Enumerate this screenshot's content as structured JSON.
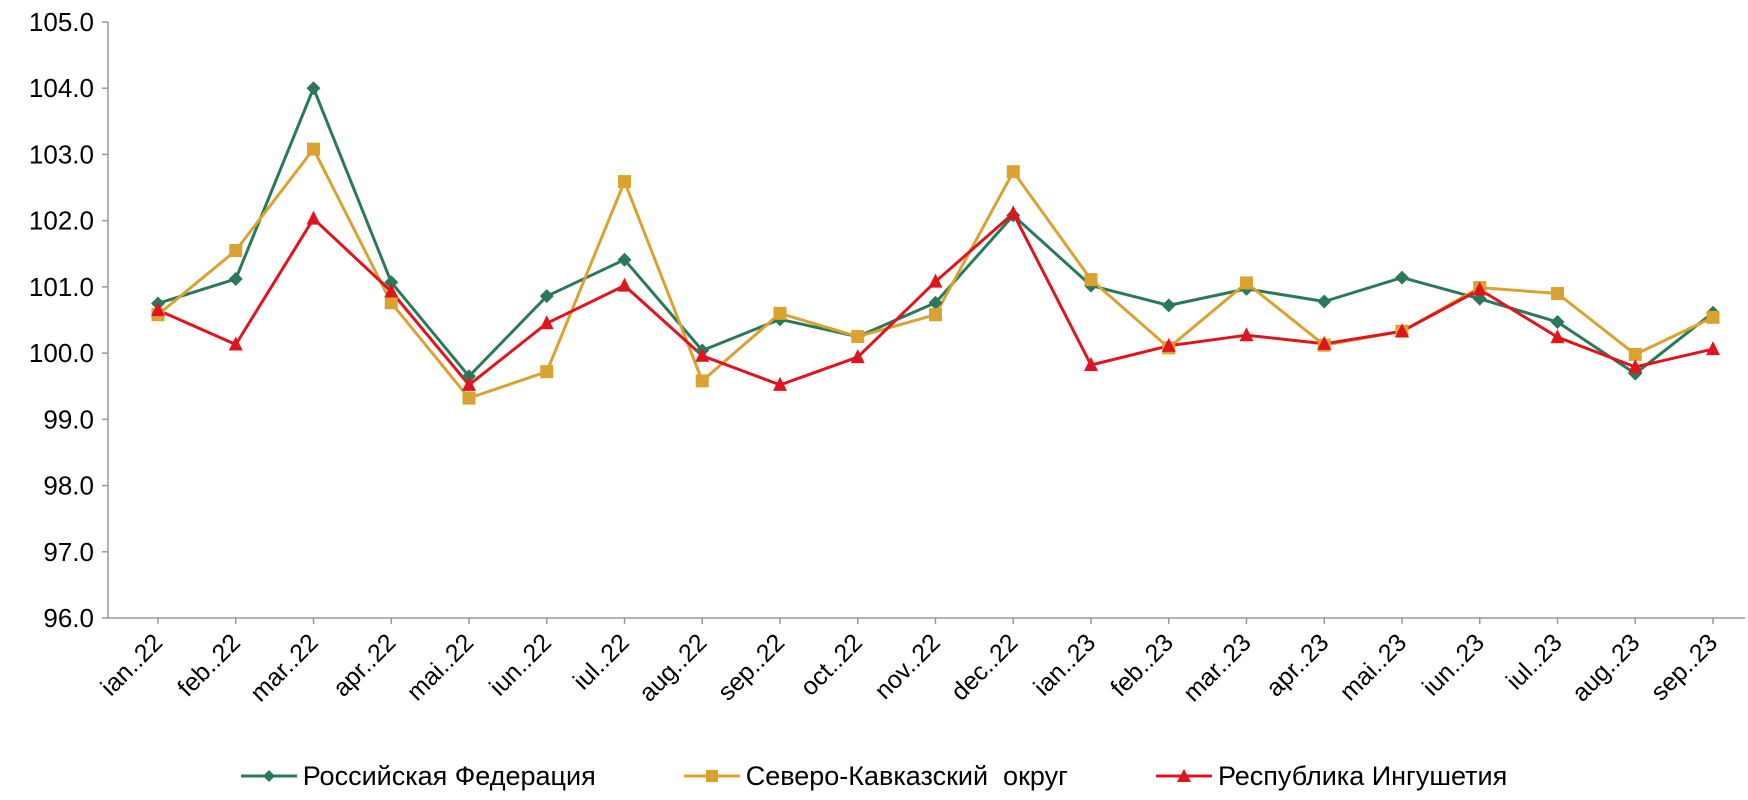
{
  "chart_data": {
    "type": "line",
    "categories": [
      "ian..22",
      "feb..22",
      "mar..22",
      "apr..22",
      "mai..22",
      "iun..22",
      "iul..22",
      "aug..22",
      "sep..22",
      "oct..22",
      "nov..22",
      "dec..22",
      "ian..23",
      "feb..23",
      "mar..23",
      "apr..23",
      "mai..23",
      "iun..23",
      "iul..23",
      "aug..23",
      "sep..23"
    ],
    "ylim": [
      96.0,
      105.0
    ],
    "yticks": [
      "96.0",
      "97.0",
      "98.0",
      "99.0",
      "100.0",
      "101.0",
      "102.0",
      "103.0",
      "104.0",
      "105.0"
    ],
    "grid": false,
    "legend_position": "bottom",
    "series": [
      {
        "name": "Российская Федерация",
        "color": "#2a7a5a",
        "marker": "diamond",
        "values": [
          100.75,
          101.12,
          104.0,
          101.07,
          99.65,
          100.86,
          101.41,
          100.04,
          100.51,
          100.25,
          100.76,
          102.08,
          101.02,
          100.72,
          100.97,
          100.78,
          101.14,
          100.82,
          100.47,
          99.69,
          100.61
        ]
      },
      {
        "name": "Северо-Кавказский  округ",
        "color": "#daa231",
        "marker": "square",
        "values": [
          100.58,
          101.55,
          103.08,
          100.76,
          99.32,
          99.72,
          102.59,
          99.58,
          100.6,
          100.25,
          100.58,
          102.74,
          101.11,
          100.08,
          101.06,
          100.12,
          100.33,
          100.99,
          100.9,
          99.98,
          100.54
        ]
      },
      {
        "name": "Республика Ингушетия",
        "color": "#e0141e",
        "marker": "triangle",
        "values": [
          100.65,
          100.13,
          102.03,
          100.93,
          99.52,
          100.45,
          101.02,
          99.96,
          99.52,
          99.94,
          101.08,
          102.11,
          99.82,
          100.11,
          100.27,
          100.14,
          100.33,
          100.96,
          100.24,
          99.79,
          100.06
        ]
      }
    ]
  }
}
